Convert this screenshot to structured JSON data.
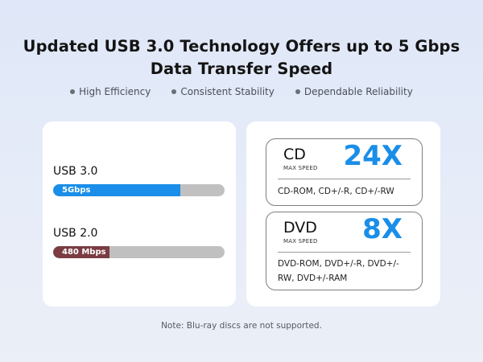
{
  "header": {
    "title_line1": "Updated USB 3.0 Technology Offers up to 5 Gbps",
    "title_line2": "Data Transfer Speed"
  },
  "features": [
    {
      "label": "High Efficiency",
      "icon": "bullet-dot-icon"
    },
    {
      "label": "Consistent Stability",
      "icon": "bullet-dot-icon"
    },
    {
      "label": "Dependable Reliability",
      "icon": "bullet-dot-icon"
    }
  ],
  "usb_comparison": [
    {
      "label": "USB 3.0",
      "speed": "5Gbps",
      "fill_percent": 74,
      "color": "#1a8ee8",
      "track_color": "#c0c0c0"
    },
    {
      "label": "USB 2.0",
      "speed": "480 Mbps",
      "fill_percent": 33,
      "color": "#7b3d42",
      "track_color": "#c0c0c0"
    }
  ],
  "discs": [
    {
      "name": "CD",
      "subtitle": "MAX SPEED",
      "speed": "24X",
      "formats": "CD-ROM, CD+/-R, CD+/-RW"
    },
    {
      "name": "DVD",
      "subtitle": "MAX SPEED",
      "speed": "8X",
      "formats": "DVD-ROM, DVD+/-R, DVD+/-RW, DVD+/-RAM"
    }
  ],
  "note": "Note: Blu-ray discs are not supported.",
  "colors": {
    "accent_blue": "#1a8ee8",
    "usb2_maroon": "#7b3d42",
    "background": "#e3e9f8"
  }
}
